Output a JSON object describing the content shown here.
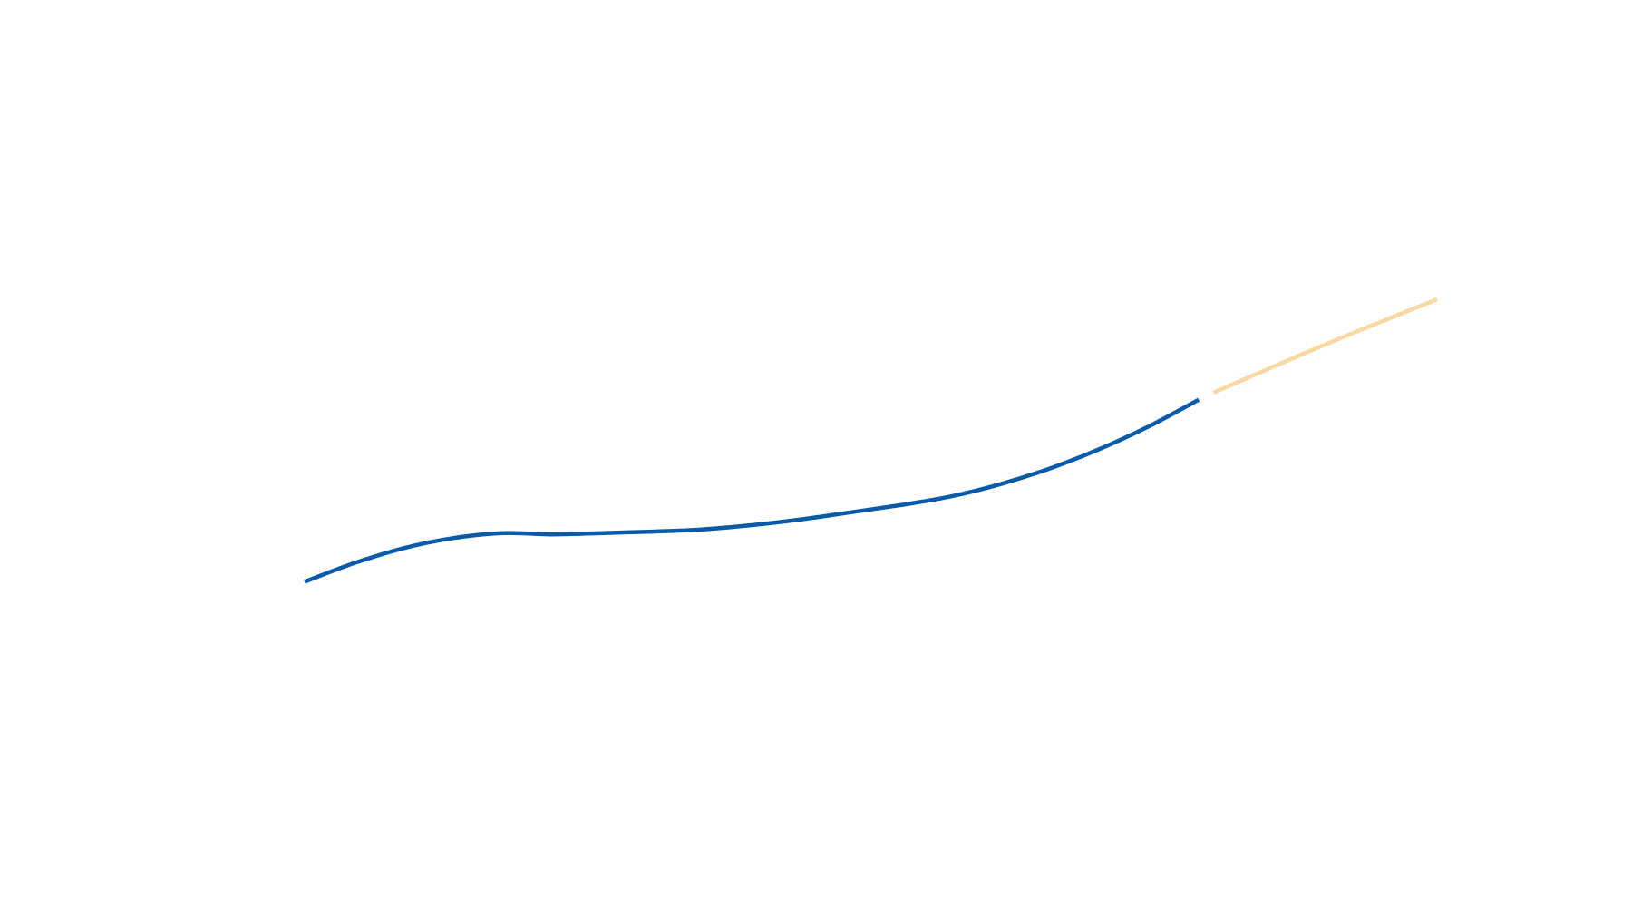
{
  "chart_data": {
    "type": "line",
    "title": "",
    "xlabel": "",
    "ylabel": "",
    "grid": false,
    "legend": "none",
    "x_axis_visible": false,
    "y_axis_visible": false,
    "xlim": [
      0,
      23
    ],
    "ylim": [
      0,
      100
    ],
    "series": [
      {
        "style": "solid",
        "color": "#0a5aaa",
        "points": [
          [
            0,
            37.8
          ],
          [
            1,
            40.4
          ],
          [
            2,
            42.5
          ],
          [
            3,
            43.9
          ],
          [
            4,
            44.6
          ],
          [
            5,
            44.4
          ],
          [
            6,
            44.6
          ],
          [
            7,
            44.8
          ],
          [
            8,
            45.1
          ],
          [
            9,
            45.7
          ],
          [
            10,
            46.5
          ],
          [
            11,
            47.5
          ],
          [
            12,
            48.5
          ],
          [
            13,
            49.7
          ],
          [
            14,
            51.4
          ],
          [
            15,
            53.6
          ],
          [
            16,
            56.3
          ],
          [
            17,
            59.5
          ],
          [
            18,
            63.2
          ]
        ]
      },
      {
        "style": "projected",
        "color": "#f8d9a4",
        "points": [
          [
            18.3,
            64.2
          ],
          [
            19,
            66.3
          ],
          [
            20,
            69.3
          ],
          [
            21,
            72.2
          ],
          [
            22,
            75.0
          ],
          [
            22.8,
            77.2
          ]
        ]
      }
    ]
  }
}
